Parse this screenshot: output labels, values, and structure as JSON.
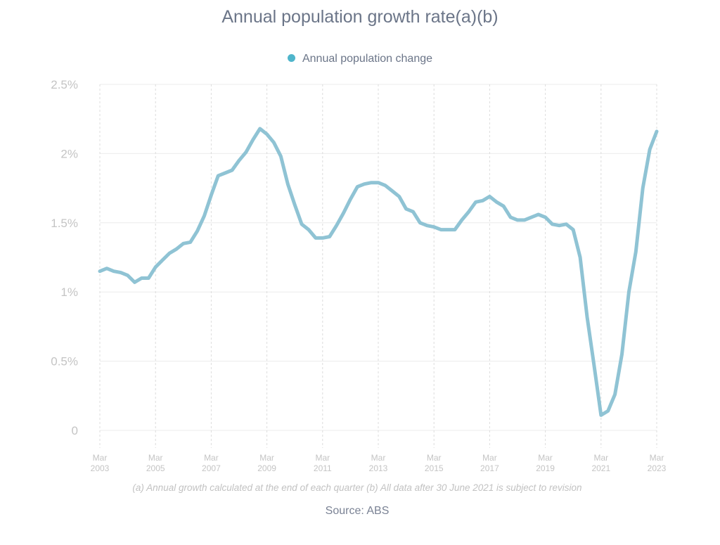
{
  "chart_data": {
    "type": "line",
    "title": "Annual population growth rate(a)(b)",
    "legend": {
      "position": "top-center",
      "entries": [
        {
          "label": "Annual population change",
          "color": "#4fb5cb"
        }
      ]
    },
    "xlabel": "",
    "ylabel": "",
    "ylim": [
      0,
      2.5
    ],
    "yticks": [
      {
        "value": 0,
        "label": "0"
      },
      {
        "value": 0.5,
        "label": "0.5%"
      },
      {
        "value": 1,
        "label": "1%"
      },
      {
        "value": 1.5,
        "label": "1.5%"
      },
      {
        "value": 2,
        "label": "2%"
      },
      {
        "value": 2.5,
        "label": "2.5%"
      }
    ],
    "xticks": [
      {
        "index": 0,
        "line1": "Mar",
        "line2": "2003"
      },
      {
        "index": 8,
        "line1": "Mar",
        "line2": "2005"
      },
      {
        "index": 16,
        "line1": "Mar",
        "line2": "2007"
      },
      {
        "index": 24,
        "line1": "Mar",
        "line2": "2009"
      },
      {
        "index": 32,
        "line1": "Mar",
        "line2": "2011"
      },
      {
        "index": 40,
        "line1": "Mar",
        "line2": "2013"
      },
      {
        "index": 48,
        "line1": "Mar",
        "line2": "2015"
      },
      {
        "index": 56,
        "line1": "Mar",
        "line2": "2017"
      },
      {
        "index": 64,
        "line1": "Mar",
        "line2": "2019"
      },
      {
        "index": 72,
        "line1": "Mar",
        "line2": "2021"
      },
      {
        "index": 80,
        "line1": "Mar",
        "line2": "2023"
      }
    ],
    "x_range": [
      "Mar 2003",
      "Mar 2023"
    ],
    "x_frequency": "quarterly",
    "grid": {
      "horizontal": "solid",
      "vertical": "dashed"
    },
    "series": [
      {
        "name": "Annual population change",
        "color": "#8fc3d4",
        "unit": "%",
        "values": [
          1.15,
          1.17,
          1.15,
          1.14,
          1.12,
          1.07,
          1.1,
          1.1,
          1.18,
          1.23,
          1.28,
          1.31,
          1.35,
          1.36,
          1.44,
          1.55,
          1.7,
          1.84,
          1.86,
          1.88,
          1.95,
          2.01,
          2.1,
          2.18,
          2.14,
          2.08,
          1.98,
          1.78,
          1.63,
          1.49,
          1.45,
          1.39,
          1.39,
          1.4,
          1.48,
          1.57,
          1.67,
          1.76,
          1.78,
          1.79,
          1.79,
          1.77,
          1.73,
          1.69,
          1.6,
          1.58,
          1.5,
          1.48,
          1.47,
          1.45,
          1.45,
          1.45,
          1.52,
          1.58,
          1.65,
          1.66,
          1.69,
          1.65,
          1.62,
          1.54,
          1.52,
          1.52,
          1.54,
          1.56,
          1.54,
          1.49,
          1.48,
          1.49,
          1.45,
          1.25,
          0.82,
          0.47,
          0.11,
          0.14,
          0.26,
          0.55,
          1.0,
          1.29,
          1.75,
          2.03,
          2.16
        ]
      }
    ],
    "footnote": "(a) Annual growth calculated at the end of each quarter (b) All data after 30 June 2021 is subject to revision",
    "source": "Source: ABS"
  }
}
